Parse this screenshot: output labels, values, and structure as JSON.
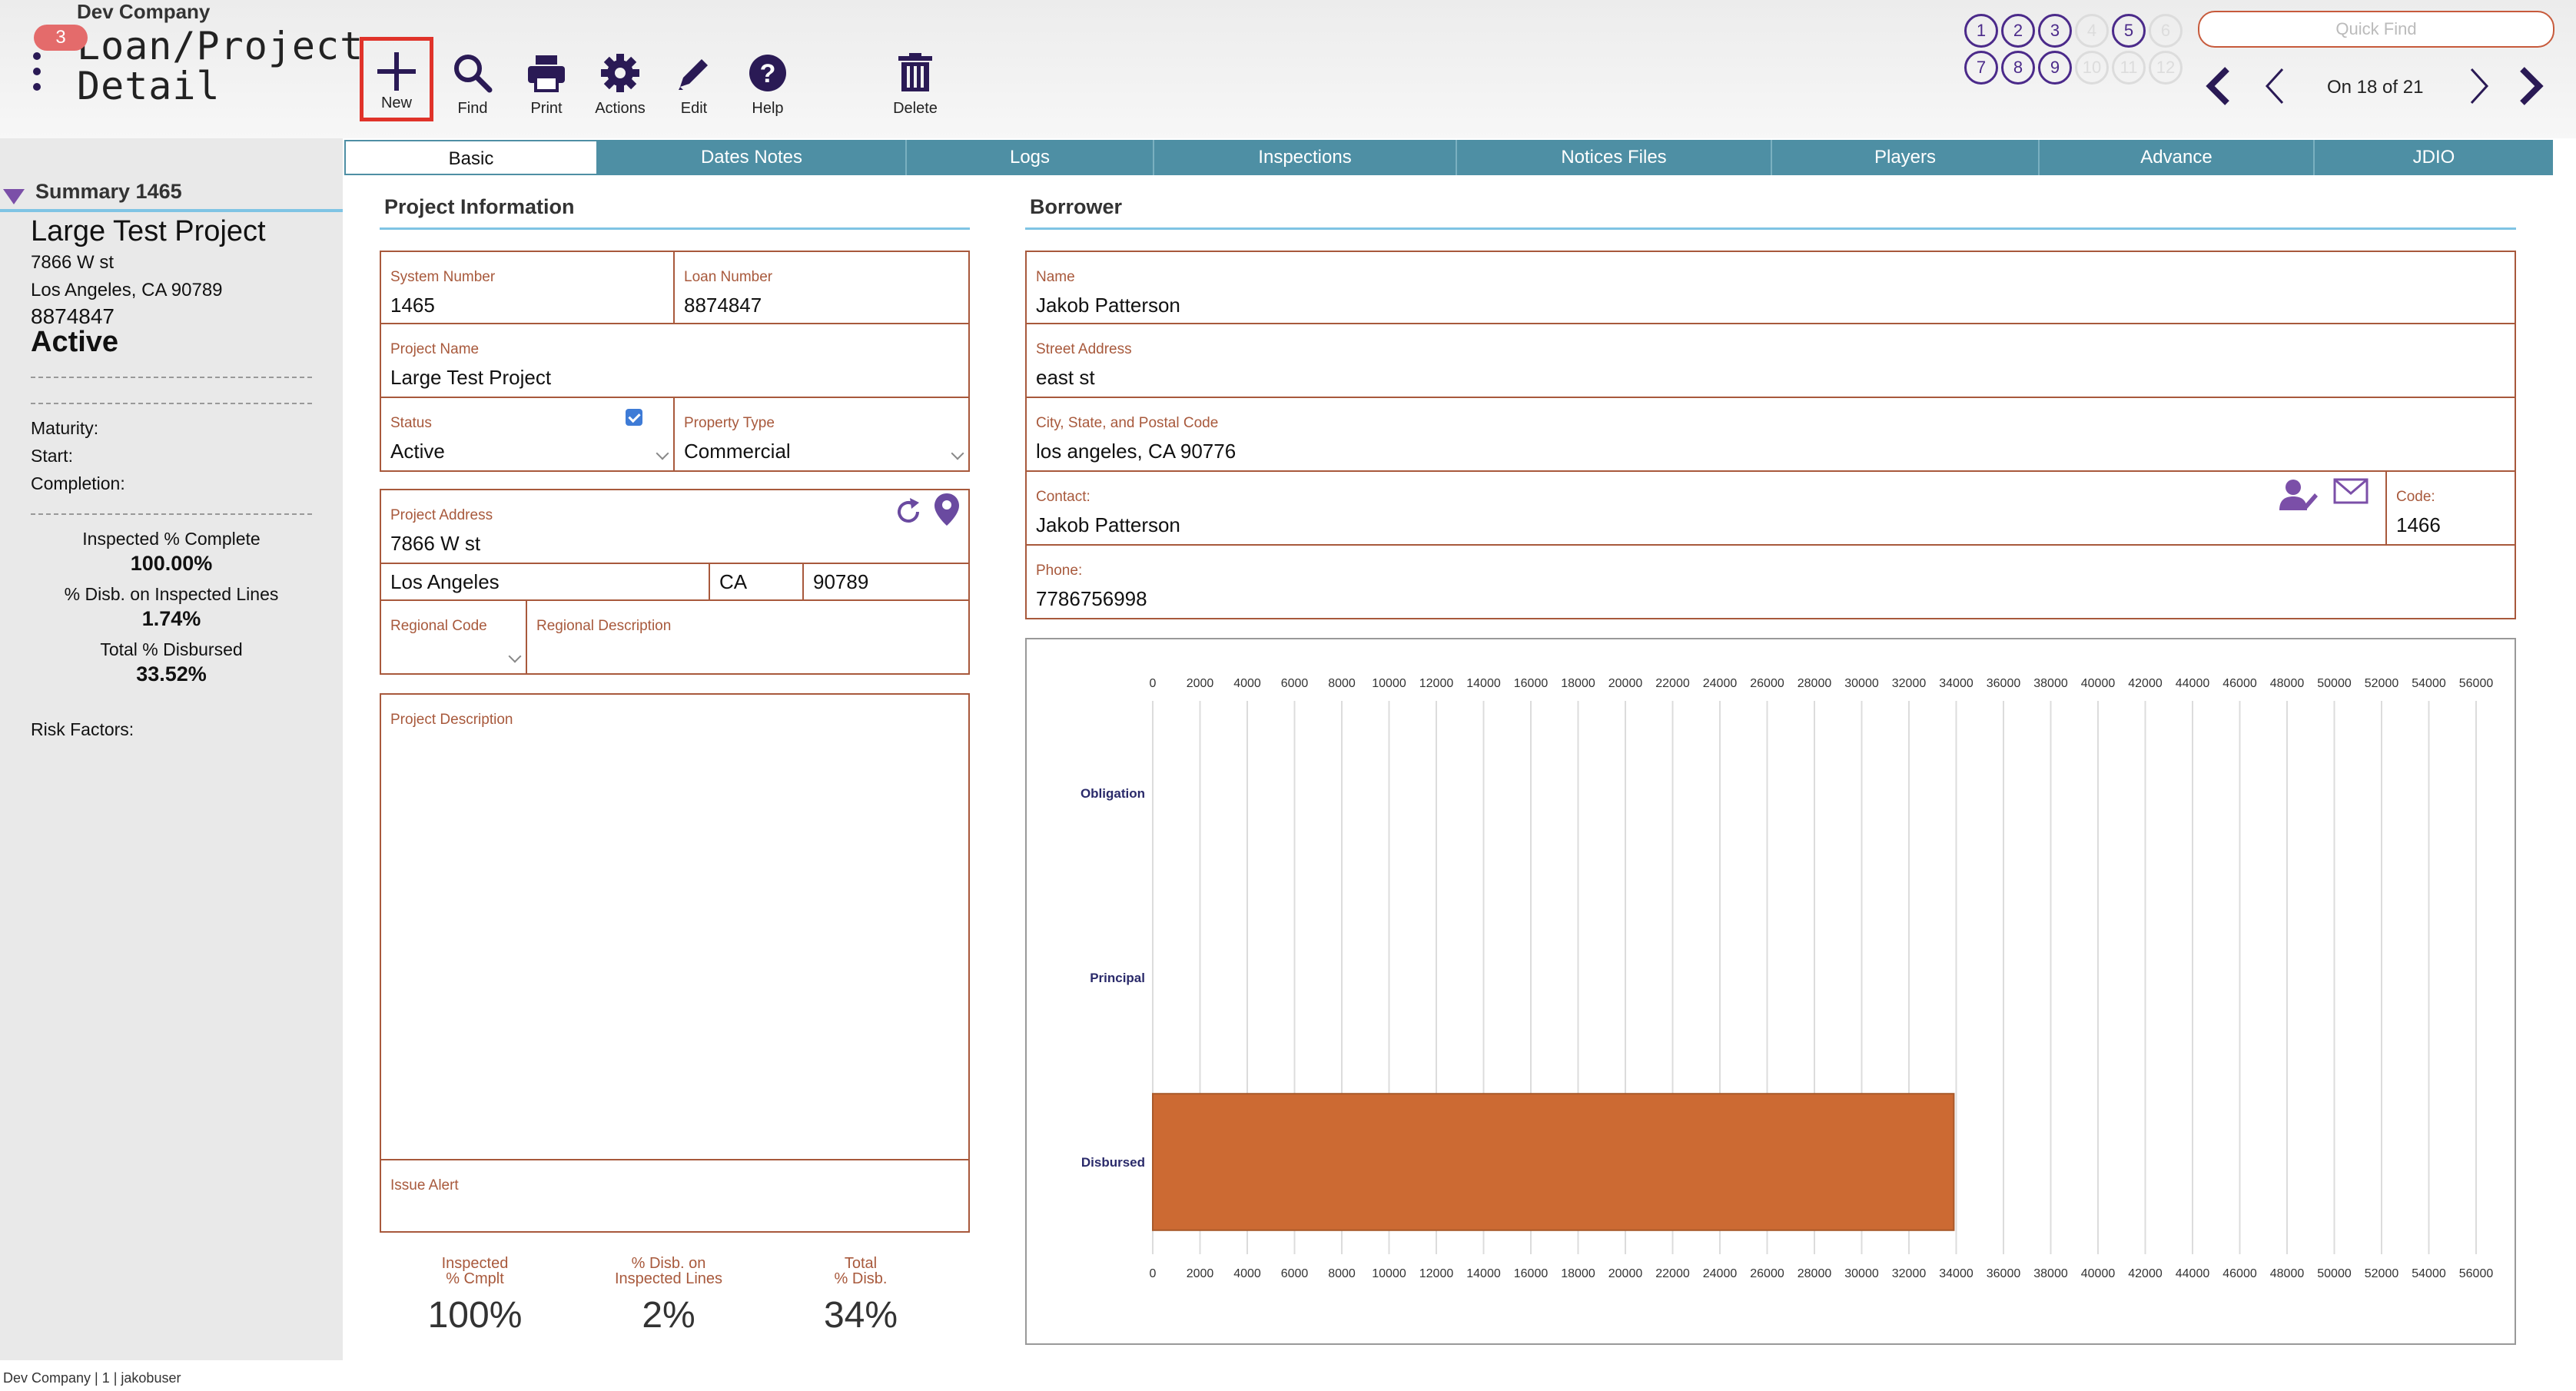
{
  "header": {
    "company": "Dev Company",
    "badge_count": "3",
    "module_title_line1": "Loan/Project",
    "module_title_line2": "Detail",
    "toolbar": {
      "new": "New",
      "find": "Find",
      "print": "Print",
      "actions": "Actions",
      "edit": "Edit",
      "help": "Help",
      "delete": "Delete"
    },
    "record_buttons": [
      "1",
      "2",
      "3",
      "4",
      "5",
      "6",
      "7",
      "8",
      "9",
      "10",
      "11",
      "12"
    ],
    "quick_find_placeholder": "Quick Find",
    "record_position": "On 18 of 21",
    "accent_color": "#4b2a8a"
  },
  "summary": {
    "header": "Summary 1465",
    "project_name": "Large Test Project",
    "address_line1": "7866 W st",
    "address_line2": "Los Angeles, CA  90789",
    "loan_number": "8874847",
    "status": "Active",
    "maturity_label": "Maturity:",
    "start_label": "Start:",
    "completion_label": "Completion:",
    "inspected_label": "Inspected % Complete",
    "inspected_value": "100.00%",
    "disb_inspected_label": "% Disb. on Inspected Lines",
    "disb_inspected_value": "1.74%",
    "total_disbursed_label": "Total % Disbursed",
    "total_disbursed_value": "33.52%",
    "risk_label": "Risk Factors:"
  },
  "tabs": [
    "Basic",
    "Dates Notes",
    "Logs",
    "Inspections",
    "Notices Files",
    "Players",
    "Advance",
    "JDIO"
  ],
  "project": {
    "title": "Project Information",
    "system_number_label": "System Number",
    "system_number": "1465",
    "loan_number_label": "Loan Number",
    "loan_number": "8874847",
    "project_name_label": "Project Name",
    "project_name": "Large Test Project",
    "status_label": "Status",
    "status": "Active",
    "property_type_label": "Property Type",
    "property_type": "Commercial",
    "address_label": "Project Address",
    "address": "7866 W st",
    "city": "Los Angeles",
    "state": "CA",
    "zip": "90789",
    "regional_code_label": "Regional Code",
    "regional_desc_label": "Regional Description",
    "description_label": "Project Description",
    "issue_alert_label": "Issue Alert",
    "stats": [
      {
        "line1": "Inspected",
        "line2": "% Cmplt",
        "value": "100%"
      },
      {
        "line1": "% Disb. on",
        "line2": "Inspected Lines",
        "value": "2%"
      },
      {
        "line1": "Total",
        "line2": "% Disb.",
        "value": "34%"
      }
    ]
  },
  "borrower": {
    "title": "Borrower",
    "name_label": "Name",
    "name": "Jakob Patterson",
    "street_label": "Street Address",
    "street": "east st",
    "city_label": "City, State, and Postal Code",
    "city": "los angeles, CA  90776",
    "contact_label": "Contact:",
    "contact": "Jakob Patterson",
    "code_label": "Code:",
    "code": "1466",
    "phone_label": "Phone:",
    "phone": "7786756998"
  },
  "chart_data": {
    "type": "bar",
    "orientation": "horizontal",
    "categories": [
      "Obligation",
      "Principal",
      "Disbursed"
    ],
    "values": [
      0,
      0,
      33900
    ],
    "xlim": [
      0,
      56000
    ],
    "tick_step": 2000,
    "bar_color": "#cc6a33",
    "grid": true,
    "title": "",
    "xlabel": "",
    "ylabel": ""
  },
  "footer": "Dev Company | 1 | jakobuser"
}
